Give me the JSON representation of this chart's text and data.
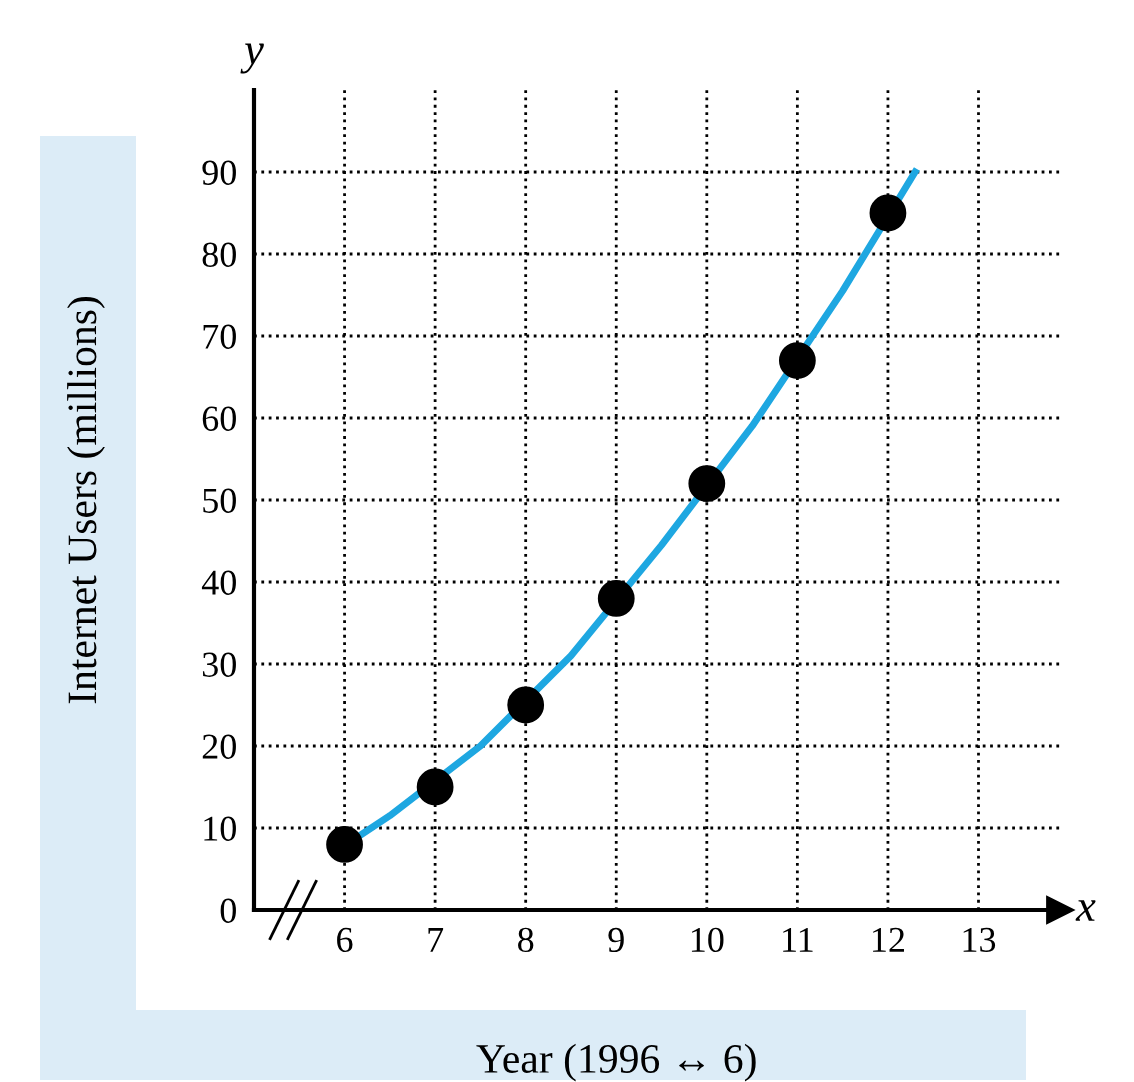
{
  "chart_data": {
    "type": "scatter",
    "xlabel": "Year (1996 ↔ 6)",
    "ylabel": "Internet Users (millions)",
    "xlim": [
      5,
      13.9
    ],
    "ylim": [
      0,
      100
    ],
    "xticks": [
      6,
      7,
      8,
      9,
      10,
      11,
      12,
      13
    ],
    "yticks": [
      0,
      10,
      20,
      30,
      40,
      50,
      60,
      70,
      80,
      90
    ],
    "grid": true,
    "marker": "circle",
    "annotations": [
      "x",
      "y"
    ],
    "series": [
      {
        "type": "line",
        "marker": "none",
        "color": "#1ea7e1",
        "x": [
          6.2,
          6.5,
          7.5,
          8.5,
          9.5,
          10.5,
          11.5,
          12.3
        ],
        "values": [
          9.3,
          11.5,
          20,
          31,
          44.5,
          59,
          75.5,
          90
        ]
      },
      {
        "color": "#000000",
        "x": [
          6,
          7,
          8,
          9,
          10,
          11,
          12
        ],
        "values": [
          8,
          15,
          25,
          38,
          52,
          67,
          85
        ]
      }
    ]
  }
}
